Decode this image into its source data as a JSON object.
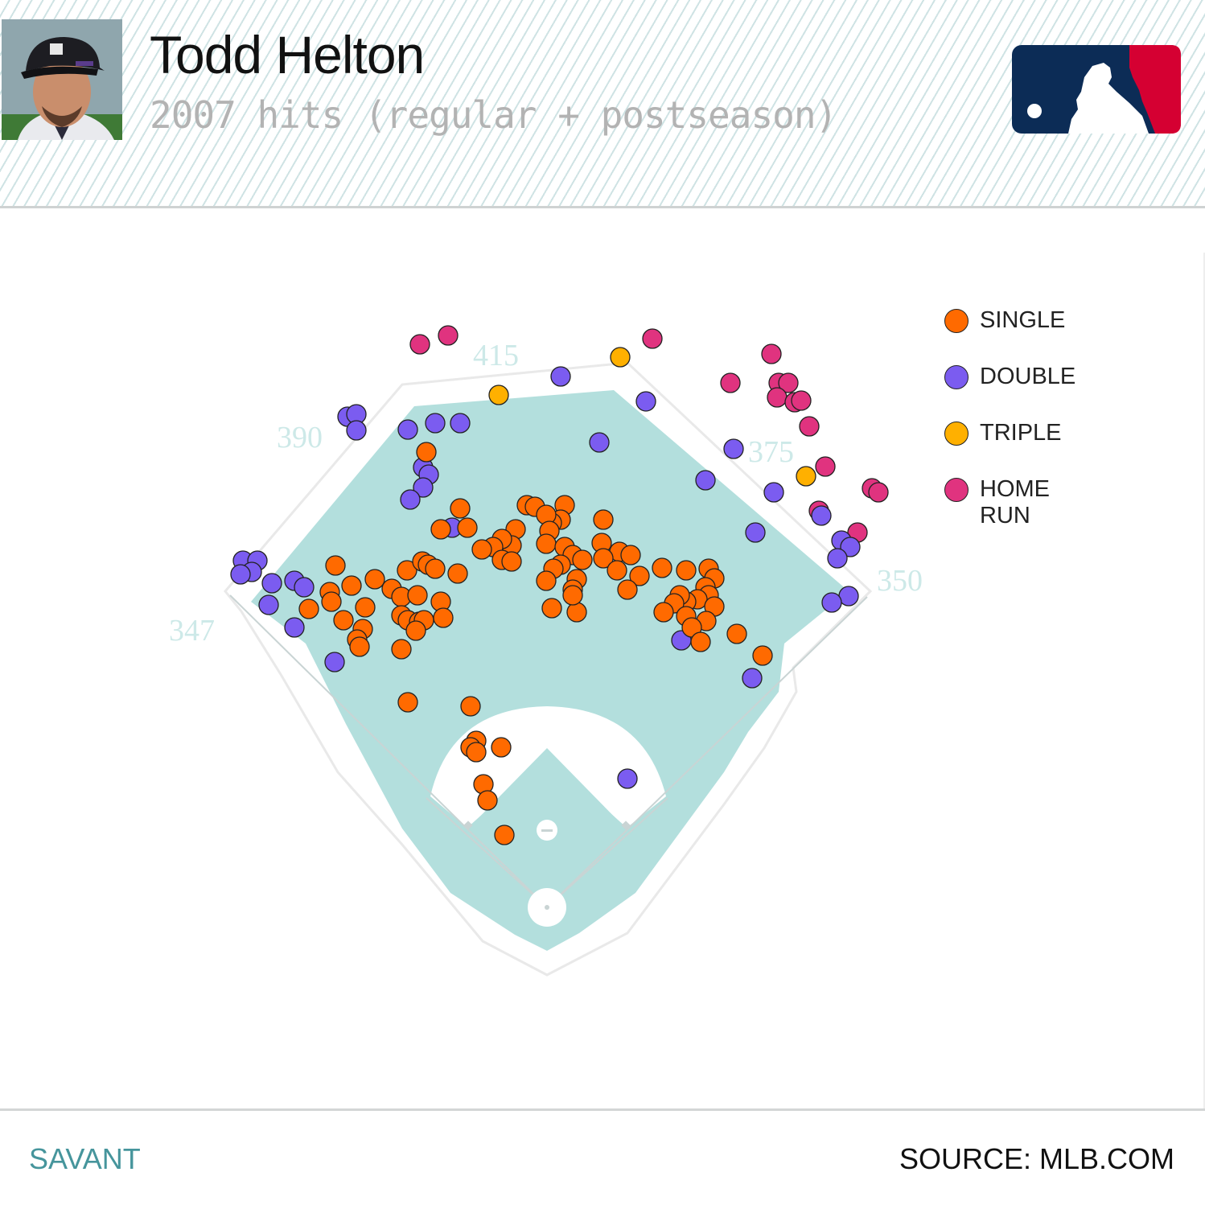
{
  "header": {
    "player_name": "Todd Helton",
    "subtitle": "2007 hits (regular + postseason)"
  },
  "footer": {
    "left": "SAVANT",
    "right": "SOURCE: MLB.COM"
  },
  "colors": {
    "single": "#ff6a00",
    "double": "#7b5cf0",
    "triple": "#ffb000",
    "home_run": "#e0337f",
    "field": "#b3dfdd",
    "logo_blue": "#0c2c56",
    "logo_red": "#d50032"
  },
  "icons": {
    "logo": "mlb-logo-icon",
    "photo": "player-headshot"
  },
  "chart_data": {
    "type": "scatter",
    "distance_labels": [
      "347",
      "390",
      "415",
      "375",
      "350"
    ],
    "legend": [
      {
        "key": "single",
        "label": "SINGLE"
      },
      {
        "key": "double",
        "label": "DOUBLE"
      },
      {
        "key": "triple",
        "label": "TRIPLE"
      },
      {
        "key": "home_run",
        "label": "HOME RUN"
      }
    ],
    "points": {
      "home_run": [
        [
          522,
          428
        ],
        [
          557,
          417
        ],
        [
          811,
          421
        ],
        [
          959,
          440
        ],
        [
          908,
          476
        ],
        [
          968,
          476
        ],
        [
          980,
          476
        ],
        [
          966,
          494
        ],
        [
          988,
          500
        ],
        [
          996,
          498
        ],
        [
          1006,
          530
        ],
        [
          1026,
          580
        ],
        [
          1084,
          607
        ],
        [
          1092,
          612
        ],
        [
          1018,
          635
        ],
        [
          1066,
          662
        ]
      ],
      "triple": [
        [
          620,
          491
        ],
        [
          771,
          444
        ],
        [
          1002,
          592
        ]
      ],
      "double": [
        [
          697,
          468
        ],
        [
          803,
          499
        ],
        [
          745,
          550
        ],
        [
          912,
          558
        ],
        [
          877,
          597
        ],
        [
          962,
          612
        ],
        [
          1021,
          641
        ],
        [
          939,
          662
        ],
        [
          1046,
          672
        ],
        [
          1057,
          680
        ],
        [
          1041,
          694
        ],
        [
          1055,
          741
        ],
        [
          1034,
          749
        ],
        [
          935,
          843
        ],
        [
          847,
          796
        ],
        [
          780,
          968
        ],
        [
          432,
          518
        ],
        [
          443,
          515
        ],
        [
          443,
          535
        ],
        [
          507,
          534
        ],
        [
          541,
          526
        ],
        [
          572,
          526
        ],
        [
          526,
          581
        ],
        [
          533,
          590
        ],
        [
          526,
          606
        ],
        [
          510,
          621
        ],
        [
          562,
          656
        ],
        [
          302,
          697
        ],
        [
          320,
          697
        ],
        [
          313,
          711
        ],
        [
          299,
          714
        ],
        [
          338,
          725
        ],
        [
          366,
          722
        ],
        [
          378,
          730
        ],
        [
          334,
          752
        ],
        [
          366,
          780
        ],
        [
          416,
          823
        ]
      ],
      "single": [
        [
          530,
          562
        ],
        [
          572,
          632
        ],
        [
          548,
          658
        ],
        [
          581,
          656
        ],
        [
          655,
          628
        ],
        [
          665,
          630
        ],
        [
          702,
          628
        ],
        [
          697,
          646
        ],
        [
          686,
          650
        ],
        [
          679,
          640
        ],
        [
          683,
          660
        ],
        [
          641,
          658
        ],
        [
          636,
          678
        ],
        [
          624,
          670
        ],
        [
          613,
          680
        ],
        [
          599,
          683
        ],
        [
          624,
          696
        ],
        [
          636,
          698
        ],
        [
          679,
          676
        ],
        [
          702,
          680
        ],
        [
          712,
          690
        ],
        [
          697,
          702
        ],
        [
          688,
          707
        ],
        [
          724,
          696
        ],
        [
          750,
          646
        ],
        [
          748,
          675
        ],
        [
          770,
          686
        ],
        [
          784,
          690
        ],
        [
          750,
          694
        ],
        [
          767,
          709
        ],
        [
          795,
          716
        ],
        [
          823,
          706
        ],
        [
          780,
          733
        ],
        [
          717,
          720
        ],
        [
          712,
          733
        ],
        [
          679,
          722
        ],
        [
          686,
          756
        ],
        [
          717,
          761
        ],
        [
          712,
          740
        ],
        [
          853,
          709
        ],
        [
          881,
          707
        ],
        [
          888,
          719
        ],
        [
          877,
          730
        ],
        [
          881,
          740
        ],
        [
          867,
          745
        ],
        [
          853,
          748
        ],
        [
          845,
          740
        ],
        [
          888,
          754
        ],
        [
          838,
          750
        ],
        [
          825,
          761
        ],
        [
          853,
          766
        ],
        [
          878,
          772
        ],
        [
          860,
          780
        ],
        [
          871,
          798
        ],
        [
          916,
          788
        ],
        [
          948,
          815
        ],
        [
          417,
          703
        ],
        [
          437,
          728
        ],
        [
          466,
          720
        ],
        [
          487,
          732
        ],
        [
          410,
          736
        ],
        [
          412,
          748
        ],
        [
          384,
          757
        ],
        [
          454,
          755
        ],
        [
          427,
          771
        ],
        [
          451,
          782
        ],
        [
          444,
          795
        ],
        [
          447,
          804
        ],
        [
          506,
          709
        ],
        [
          525,
          698
        ],
        [
          532,
          702
        ],
        [
          541,
          707
        ],
        [
          569,
          713
        ],
        [
          499,
          742
        ],
        [
          519,
          740
        ],
        [
          548,
          748
        ],
        [
          499,
          765
        ],
        [
          507,
          771
        ],
        [
          521,
          773
        ],
        [
          551,
          768
        ],
        [
          527,
          771
        ],
        [
          499,
          807
        ],
        [
          517,
          784
        ],
        [
          507,
          873
        ],
        [
          585,
          878
        ],
        [
          592,
          921
        ],
        [
          585,
          929
        ],
        [
          592,
          935
        ],
        [
          623,
          929
        ],
        [
          601,
          975
        ],
        [
          606,
          995
        ],
        [
          627,
          1038
        ]
      ]
    }
  }
}
